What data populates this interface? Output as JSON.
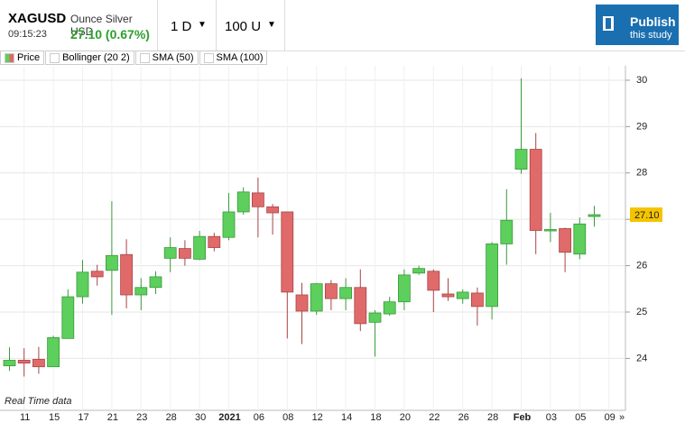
{
  "header": {
    "symbol": "XAGUSD",
    "time": "09:15:23",
    "name": "Ounce Silver USD",
    "price_change": "27.10 (0.67%)",
    "interval": "1 D",
    "units": "100 U",
    "publish": "Publish",
    "publish_sub": "this study"
  },
  "legend": [
    "Price",
    "Bollinger (20 2)",
    "SMA (50)",
    "SMA (100)"
  ],
  "chart_data": {
    "type": "candlestick",
    "annotation": "Real Time data",
    "more": "»",
    "up_color": "#5ccf5c",
    "down_color": "#e06a6a",
    "categories": [
      null,
      "11",
      null,
      "15",
      null,
      "17",
      null,
      "21",
      null,
      "23",
      null,
      "28",
      null,
      "30",
      null,
      "2021",
      null,
      "06",
      null,
      "08",
      null,
      "12",
      null,
      "14",
      null,
      "18",
      null,
      "20",
      null,
      "22",
      null,
      "26",
      null,
      "28",
      null,
      "Feb",
      null,
      "03",
      null,
      "05",
      null,
      "09"
    ],
    "open": [
      23.84,
      23.96,
      23.98,
      23.82,
      24.43,
      25.33,
      25.88,
      25.9,
      26.24,
      25.37,
      25.53,
      26.16,
      26.37,
      26.14,
      26.63,
      26.61,
      27.16,
      27.57,
      27.27,
      27.16,
      25.37,
      25.02,
      25.61,
      25.29,
      25.53,
      24.78,
      24.96,
      25.22,
      25.84,
      25.88,
      25.39,
      25.29,
      25.41,
      25.12,
      26.47,
      28.08,
      28.51,
      26.75,
      26.8,
      26.25,
      27.06,
      null
    ],
    "high": [
      24.24,
      24.22,
      24.25,
      24.49,
      25.49,
      26.12,
      26.02,
      27.39,
      26.57,
      25.73,
      25.88,
      26.61,
      26.55,
      26.75,
      26.71,
      27.57,
      27.69,
      27.9,
      27.33,
      27.16,
      25.63,
      25.63,
      25.69,
      25.73,
      25.92,
      25.04,
      25.33,
      25.92,
      26.0,
      25.92,
      25.73,
      25.49,
      25.53,
      26.51,
      27.65,
      30.04,
      28.86,
      27.14,
      26.82,
      27.04,
      27.29,
      null
    ],
    "low": [
      23.73,
      23.61,
      23.67,
      23.82,
      24.43,
      25.18,
      25.57,
      24.94,
      25.08,
      25.04,
      25.39,
      25.86,
      26.0,
      26.12,
      26.31,
      26.55,
      27.1,
      26.61,
      26.67,
      24.43,
      24.31,
      24.94,
      25.04,
      25.04,
      24.59,
      24.04,
      24.92,
      25.04,
      25.8,
      25.0,
      25.24,
      25.18,
      24.71,
      24.84,
      26.02,
      27.98,
      26.25,
      26.51,
      25.86,
      26.14,
      26.84,
      null
    ],
    "close": [
      23.96,
      23.9,
      23.82,
      24.45,
      25.33,
      25.86,
      25.76,
      26.22,
      25.37,
      25.53,
      25.76,
      26.39,
      26.16,
      26.63,
      26.39,
      27.16,
      27.59,
      27.27,
      27.14,
      25.43,
      25.02,
      25.61,
      25.29,
      25.53,
      24.75,
      24.98,
      25.22,
      25.8,
      25.94,
      25.47,
      25.33,
      25.43,
      25.12,
      26.47,
      26.98,
      28.51,
      26.76,
      26.78,
      26.29,
      26.9,
      27.1,
      null
    ],
    "ylim": [
      22.88,
      30.31
    ],
    "yticks": [
      24,
      25,
      26,
      27,
      28,
      29,
      30
    ],
    "grid": true,
    "last_price": {
      "value": 27.1,
      "label": "27.10"
    }
  }
}
